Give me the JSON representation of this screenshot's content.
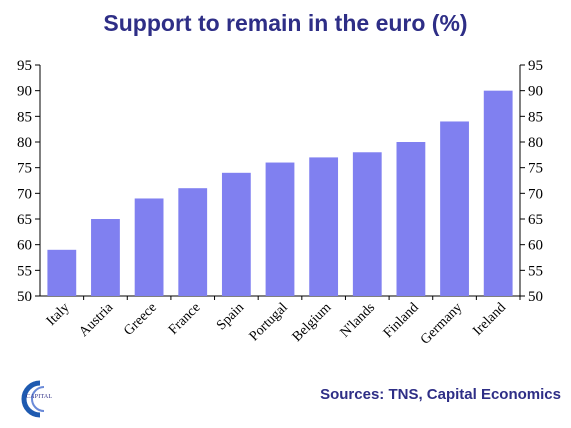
{
  "chart_data": {
    "type": "bar",
    "title": "Support to remain in the euro (%)",
    "categories": [
      "Italy",
      "Austria",
      "Greece",
      "France",
      "Spain",
      "Portugal",
      "Belgium",
      "N'lands",
      "Finland",
      "Germany",
      "Ireland"
    ],
    "values": [
      59,
      65,
      69,
      71,
      74,
      76,
      77,
      78,
      80,
      84,
      90
    ],
    "ylim": [
      50,
      95
    ],
    "yticks": [
      50,
      55,
      60,
      65,
      70,
      75,
      80,
      85,
      90,
      95
    ],
    "secondary_y_axis": true,
    "grid": false,
    "bar_color": "#8080f0",
    "title_color": "#2e2e86"
  },
  "source": "Sources: TNS, Capital Economics",
  "logo": {
    "icon": "capital-economics-logo",
    "text": "CAPITAL"
  }
}
